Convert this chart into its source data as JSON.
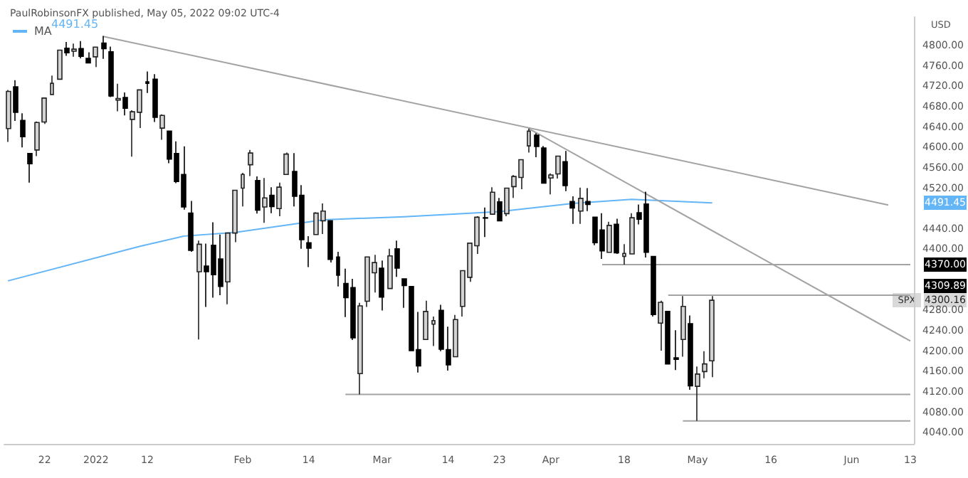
{
  "chart_data": {
    "type": "candlestick",
    "title": "PaulRobinsonFX published, May 05, 2022 09:02 UTC-4",
    "ylabel": "USD",
    "categories": [
      null,
      null,
      null,
      null,
      null,
      "22",
      null,
      null,
      null,
      null,
      null,
      null,
      "2022",
      null,
      null,
      null,
      null,
      null,
      null,
      "12",
      null,
      null,
      null,
      null,
      null,
      null,
      null,
      null,
      null,
      null,
      null,
      null,
      "Feb",
      null,
      null,
      null,
      null,
      null,
      null,
      null,
      null,
      "14",
      null,
      null,
      null,
      null,
      null,
      null,
      null,
      null,
      null,
      "Mar",
      null,
      null,
      null,
      null,
      null,
      null,
      null,
      null,
      "14",
      null,
      null,
      null,
      null,
      null,
      null,
      "23",
      null,
      null,
      null,
      null,
      null,
      null,
      "Apr",
      null,
      null,
      null,
      null,
      null,
      null,
      null,
      null,
      null,
      "18",
      null,
      null,
      null,
      null,
      null,
      null,
      null,
      null,
      null,
      "May",
      null,
      null,
      null,
      null,
      null,
      null,
      null,
      null,
      null,
      "16",
      null,
      null,
      null,
      null,
      null,
      null,
      null,
      null,
      null,
      null,
      "Jun",
      null,
      null,
      null,
      null,
      null,
      null,
      null,
      "13"
    ],
    "ohlc": [
      [
        4637,
        4713,
        4611,
        4710
      ],
      [
        4719,
        4732,
        4652,
        4669
      ],
      [
        4653,
        4667,
        4600,
        4621
      ],
      [
        4588,
        4588,
        4531,
        4568
      ],
      [
        4595,
        4651,
        4583,
        4649
      ],
      [
        4650,
        4698,
        4646,
        4697
      ],
      [
        4704,
        4741,
        4704,
        4726
      ],
      [
        4734,
        4791,
        4734,
        4791
      ],
      [
        4795,
        4807,
        4780,
        4786
      ],
      [
        4789,
        4804,
        4778,
        4793
      ],
      [
        4794,
        4809,
        4775,
        4779
      ],
      [
        4775,
        4787,
        4766,
        4766
      ],
      [
        4778,
        4797,
        4758,
        4797
      ],
      [
        4805,
        4819,
        4774,
        4794
      ],
      [
        4788,
        4798,
        4699,
        4701
      ],
      [
        4693,
        4725,
        4671,
        4696
      ],
      [
        4698,
        4708,
        4663,
        4677
      ],
      [
        4655,
        4673,
        4582,
        4670
      ],
      [
        4669,
        4714,
        4638,
        4713
      ],
      [
        4729,
        4749,
        4707,
        4726
      ],
      [
        4734,
        4744,
        4650,
        4659
      ],
      [
        4638,
        4665,
        4615,
        4663
      ],
      [
        4632,
        4632,
        4569,
        4577
      ],
      [
        4588,
        4612,
        4530,
        4533
      ],
      [
        4547,
        4602,
        4478,
        4483
      ],
      [
        4471,
        4495,
        4395,
        4398
      ],
      [
        4356,
        4417,
        4223,
        4410
      ],
      [
        4367,
        4411,
        4287,
        4356
      ],
      [
        4408,
        4453,
        4305,
        4350
      ],
      [
        4381,
        4429,
        4310,
        4327
      ],
      [
        4336,
        4433,
        4292,
        4432
      ],
      [
        4432,
        4517,
        4414,
        4516
      ],
      [
        4520,
        4550,
        4484,
        4547
      ],
      [
        4566,
        4595,
        4544,
        4589
      ],
      [
        4535,
        4543,
        4470,
        4477
      ],
      [
        4483,
        4540,
        4452,
        4501
      ],
      [
        4506,
        4522,
        4471,
        4484
      ],
      [
        4480,
        4531,
        4465,
        4522
      ],
      [
        4547,
        4590,
        4547,
        4587
      ],
      [
        4553,
        4589,
        4484,
        4504
      ],
      [
        4506,
        4526,
        4401,
        4419
      ],
      [
        4413,
        4426,
        4365,
        4402
      ],
      [
        4429,
        4473,
        4429,
        4471
      ],
      [
        4456,
        4490,
        4430,
        4475
      ],
      [
        4456,
        4456,
        4374,
        4380
      ],
      [
        4385,
        4395,
        4327,
        4349
      ],
      [
        4333,
        4362,
        4267,
        4305
      ],
      [
        4325,
        4342,
        4222,
        4226
      ],
      [
        4156,
        4295,
        4115,
        4289
      ],
      [
        4298,
        4385,
        4287,
        4385
      ],
      [
        4354,
        4389,
        4315,
        4374
      ],
      [
        4363,
        4378,
        4280,
        4306
      ],
      [
        4323,
        4401,
        4323,
        4387
      ],
      [
        4401,
        4417,
        4346,
        4363
      ],
      [
        4342,
        4342,
        4285,
        4329
      ],
      [
        4327,
        4327,
        4200,
        4201
      ],
      [
        4203,
        4277,
        4158,
        4171
      ],
      [
        4223,
        4299,
        4223,
        4278
      ],
      [
        4253,
        4268,
        4210,
        4260
      ],
      [
        4280,
        4291,
        4200,
        4204
      ],
      [
        4203,
        4248,
        4162,
        4173
      ],
      [
        4189,
        4271,
        4188,
        4262
      ],
      [
        4288,
        4358,
        4268,
        4358
      ],
      [
        4345,
        4413,
        4336,
        4412
      ],
      [
        4407,
        4465,
        4391,
        4463
      ],
      [
        4462,
        4482,
        4424,
        4461
      ],
      [
        4469,
        4522,
        4469,
        4512
      ],
      [
        4493,
        4501,
        4456,
        4456
      ],
      [
        4470,
        4521,
        4465,
        4520
      ],
      [
        4523,
        4546,
        4501,
        4543
      ],
      [
        4541,
        4576,
        4518,
        4576
      ],
      [
        4603,
        4637,
        4590,
        4632
      ],
      [
        4624,
        4628,
        4581,
        4602
      ],
      [
        4599,
        4603,
        4530,
        4530
      ],
      [
        4540,
        4549,
        4508,
        4546
      ],
      [
        4548,
        4584,
        4539,
        4583
      ],
      [
        4572,
        4593,
        4514,
        4525
      ],
      [
        4494,
        4504,
        4450,
        4481
      ],
      [
        4475,
        4521,
        4450,
        4500
      ],
      [
        4494,
        4520,
        4475,
        4488
      ],
      [
        4463,
        4464,
        4408,
        4413
      ],
      [
        4438,
        4471,
        4381,
        4397
      ],
      [
        4394,
        4454,
        4393,
        4447
      ],
      [
        4449,
        4460,
        4391,
        4393
      ],
      [
        4386,
        4410,
        4370,
        4392
      ],
      [
        4391,
        4471,
        4391,
        4462
      ],
      [
        4472,
        4488,
        4449,
        4459
      ],
      [
        4489,
        4513,
        4384,
        4394
      ],
      [
        4386,
        4386,
        4268,
        4272
      ],
      [
        4255,
        4299,
        4201,
        4296
      ],
      [
        4278,
        4278,
        4175,
        4175
      ],
      [
        4187,
        4241,
        4163,
        4184
      ],
      [
        4223,
        4308,
        4189,
        4288
      ],
      [
        4254,
        4270,
        4124,
        4132
      ],
      [
        4131,
        4170,
        4063,
        4155
      ],
      [
        4160,
        4200,
        4147,
        4175
      ],
      [
        4181,
        4308,
        4149,
        4300
      ],
      null,
      null,
      null,
      null,
      null,
      null,
      null,
      null,
      null,
      null,
      null,
      null,
      null,
      null,
      null,
      null,
      null,
      null,
      null,
      null,
      null,
      null,
      null,
      null,
      null,
      null,
      null
    ],
    "series": [
      {
        "type": "line",
        "name": "MA",
        "color": "#64b5f6",
        "values": [
          4338,
          null,
          null,
          null,
          null,
          null,
          null,
          null,
          null,
          null,
          null,
          null,
          null,
          null,
          null,
          null,
          null,
          null,
          4406,
          null,
          null,
          null,
          null,
          null,
          4426,
          null,
          null,
          null,
          null,
          null,
          null,
          4433,
          null,
          null,
          null,
          null,
          null,
          null,
          null,
          null,
          null,
          null,
          null,
          4458,
          null,
          null,
          null,
          null,
          null,
          null,
          null,
          null,
          null,
          null,
          4464,
          null,
          null,
          null,
          null,
          null,
          null,
          null,
          null,
          null,
          null,
          null,
          null,
          4474,
          null,
          null,
          null,
          null,
          null,
          null,
          null,
          null,
          null,
          4490,
          null,
          null,
          null,
          null,
          null,
          null,
          null,
          4498,
          null,
          null,
          null,
          null,
          null,
          null,
          null,
          null,
          null,
          null,
          4491,
          null,
          null,
          null,
          null,
          null,
          null,
          null,
          null,
          null,
          null,
          null,
          null,
          null,
          null,
          null,
          null,
          null,
          null,
          null,
          null,
          null,
          null,
          null,
          null,
          null,
          null,
          null
        ]
      },
      {
        "type": "line",
        "color": "#a3a3a3",
        "values": [
          null,
          null,
          null,
          null,
          null,
          null,
          null,
          null,
          null,
          null,
          null,
          null,
          null,
          4818,
          null,
          null,
          null,
          null,
          null,
          null,
          null,
          null,
          null,
          null,
          null,
          null,
          null,
          null,
          null,
          null,
          null,
          null,
          null,
          null,
          null,
          null,
          null,
          null,
          null,
          null,
          null,
          null,
          null,
          null,
          null,
          null,
          null,
          null,
          null,
          null,
          null,
          null,
          null,
          null,
          null,
          null,
          null,
          null,
          null,
          null,
          null,
          null,
          null,
          null,
          null,
          null,
          null,
          null,
          null,
          null,
          null,
          null,
          null,
          null,
          null,
          null,
          null,
          null,
          null,
          null,
          null,
          null,
          null,
          null,
          null,
          null,
          null,
          null,
          null,
          null,
          null,
          null,
          null,
          null,
          null,
          null,
          null,
          null,
          null,
          null,
          null,
          null,
          null,
          null,
          null,
          null,
          null,
          null,
          null,
          null,
          null,
          null,
          null,
          null,
          null,
          null,
          null,
          null,
          null,
          null,
          4487,
          null,
          null,
          null
        ]
      },
      {
        "type": "line",
        "color": "#a3a3a3",
        "values": [
          null,
          null,
          null,
          null,
          null,
          null,
          null,
          null,
          null,
          null,
          null,
          null,
          null,
          null,
          null,
          null,
          null,
          null,
          null,
          null,
          null,
          null,
          null,
          null,
          null,
          null,
          null,
          null,
          null,
          null,
          null,
          null,
          null,
          null,
          null,
          null,
          null,
          null,
          null,
          null,
          null,
          null,
          null,
          null,
          null,
          null,
          null,
          null,
          null,
          null,
          null,
          null,
          null,
          null,
          null,
          null,
          null,
          null,
          null,
          null,
          null,
          null,
          null,
          null,
          null,
          null,
          null,
          null,
          null,
          null,
          null,
          4637,
          null,
          null,
          null,
          null,
          null,
          null,
          null,
          null,
          null,
          null,
          null,
          null,
          null,
          null,
          null,
          null,
          null,
          null,
          null,
          null,
          null,
          null,
          null,
          null,
          null,
          null,
          null,
          null,
          null,
          null,
          null,
          null,
          null,
          null,
          null,
          null,
          null,
          null,
          null,
          null,
          null,
          null,
          null,
          null,
          null,
          null,
          null,
          null,
          null,
          null,
          null,
          4220
        ]
      },
      {
        "type": "line",
        "color": "#a3a3a3",
        "values": [
          null,
          null,
          null,
          null,
          null,
          null,
          null,
          null,
          null,
          null,
          null,
          null,
          null,
          null,
          null,
          null,
          null,
          null,
          null,
          null,
          null,
          null,
          null,
          null,
          null,
          null,
          null,
          null,
          null,
          null,
          null,
          null,
          null,
          null,
          null,
          null,
          null,
          null,
          null,
          null,
          null,
          null,
          null,
          null,
          null,
          null,
          null,
          null,
          null,
          null,
          null,
          null,
          null,
          null,
          null,
          null,
          null,
          null,
          null,
          null,
          null,
          null,
          null,
          null,
          null,
          null,
          null,
          null,
          null,
          null,
          null,
          null,
          null,
          null,
          null,
          null,
          null,
          null,
          null,
          null,
          null,
          4370,
          null,
          null,
          null,
          null,
          null,
          null,
          null,
          null,
          null,
          null,
          null,
          null,
          null,
          null,
          null,
          null,
          null,
          null,
          null,
          null,
          null,
          null,
          null,
          null,
          null,
          null,
          null,
          null,
          null,
          null,
          null,
          null,
          null,
          null,
          null,
          null,
          null,
          null,
          null,
          null,
          null,
          4370
        ]
      },
      {
        "type": "line",
        "color": "#a3a3a3",
        "values": [
          null,
          null,
          null,
          null,
          null,
          null,
          null,
          null,
          null,
          null,
          null,
          null,
          null,
          null,
          null,
          null,
          null,
          null,
          null,
          null,
          null,
          null,
          null,
          null,
          null,
          null,
          null,
          null,
          null,
          null,
          null,
          null,
          null,
          null,
          null,
          null,
          null,
          null,
          null,
          null,
          null,
          null,
          null,
          null,
          null,
          null,
          null,
          null,
          null,
          null,
          null,
          null,
          null,
          null,
          null,
          null,
          null,
          null,
          null,
          null,
          null,
          null,
          null,
          null,
          null,
          null,
          null,
          null,
          null,
          null,
          null,
          null,
          null,
          null,
          null,
          null,
          null,
          null,
          null,
          null,
          null,
          null,
          null,
          null,
          null,
          null,
          null,
          null,
          null,
          null,
          4310,
          null,
          null,
          null,
          null,
          null,
          null,
          null,
          null,
          null,
          null,
          null,
          null,
          null,
          null,
          null,
          null,
          null,
          null,
          null,
          null,
          null,
          null,
          null,
          null,
          null,
          null,
          null,
          null,
          null,
          null,
          null,
          null,
          4310
        ]
      },
      {
        "type": "line",
        "color": "#a3a3a3",
        "values": [
          null,
          null,
          null,
          null,
          null,
          null,
          null,
          null,
          null,
          null,
          null,
          null,
          null,
          null,
          null,
          null,
          null,
          null,
          null,
          null,
          null,
          null,
          null,
          null,
          null,
          null,
          null,
          null,
          null,
          null,
          null,
          null,
          null,
          null,
          null,
          null,
          null,
          null,
          null,
          null,
          null,
          null,
          null,
          null,
          null,
          null,
          4115,
          null,
          null,
          null,
          null,
          null,
          null,
          null,
          null,
          null,
          null,
          null,
          null,
          null,
          null,
          null,
          null,
          null,
          null,
          null,
          null,
          null,
          null,
          null,
          null,
          null,
          null,
          null,
          null,
          null,
          null,
          null,
          null,
          null,
          null,
          null,
          null,
          null,
          null,
          null,
          null,
          null,
          null,
          null,
          null,
          null,
          null,
          null,
          null,
          null,
          null,
          null,
          null,
          null,
          null,
          null,
          null,
          null,
          null,
          null,
          null,
          null,
          null,
          null,
          null,
          null,
          null,
          null,
          null,
          null,
          null,
          null,
          null,
          null,
          null,
          null,
          null,
          4115
        ]
      },
      {
        "type": "line",
        "color": "#a3a3a3",
        "values": [
          null,
          null,
          null,
          null,
          null,
          null,
          null,
          null,
          null,
          null,
          null,
          null,
          null,
          null,
          null,
          null,
          null,
          null,
          null,
          null,
          null,
          null,
          null,
          null,
          null,
          null,
          null,
          null,
          null,
          null,
          null,
          null,
          null,
          null,
          null,
          null,
          null,
          null,
          null,
          null,
          null,
          null,
          null,
          null,
          null,
          null,
          null,
          null,
          null,
          null,
          null,
          null,
          null,
          null,
          null,
          null,
          null,
          null,
          null,
          null,
          null,
          null,
          null,
          null,
          null,
          null,
          null,
          null,
          null,
          null,
          null,
          null,
          null,
          null,
          null,
          null,
          null,
          null,
          null,
          null,
          null,
          null,
          null,
          null,
          null,
          null,
          null,
          null,
          null,
          null,
          null,
          null,
          4063,
          null,
          null,
          null,
          null,
          null,
          null,
          null,
          null,
          null,
          null,
          null,
          null,
          null,
          null,
          null,
          null,
          null,
          null,
          null,
          null,
          null,
          null,
          null,
          null,
          null,
          null,
          null,
          null,
          null,
          null,
          4063
        ]
      }
    ],
    "ylim": [
      4018,
      4856
    ],
    "yticks": [
      {
        "value": 4040,
        "label": "4040.00"
      },
      {
        "value": 4080,
        "label": "4080.00"
      },
      {
        "value": 4120,
        "label": "4120.00"
      },
      {
        "value": 4160,
        "label": "4160.00"
      },
      {
        "value": 4200,
        "label": "4200.00"
      },
      {
        "value": 4240,
        "label": "4240.00"
      },
      {
        "value": 4280,
        "label": "4280.00"
      },
      {
        "value": 4400,
        "label": "4400.00"
      },
      {
        "value": 4440,
        "label": "4440.00"
      },
      {
        "value": 4520,
        "label": "4520.00"
      },
      {
        "value": 4560,
        "label": "4560.00"
      },
      {
        "value": 4600,
        "label": "4600.00"
      },
      {
        "value": 4640,
        "label": "4640.00"
      },
      {
        "value": 4680,
        "label": "4680.00"
      },
      {
        "value": 4720,
        "label": "4720.00"
      },
      {
        "value": 4760,
        "label": "4760.00"
      },
      {
        "value": 4800,
        "label": "4800.00"
      }
    ],
    "grid": false,
    "legend": "top left",
    "annotations": [
      "4491.45",
      "4491.45",
      "4370.00",
      "4309.89",
      "SPX",
      "4300.16"
    ]
  }
}
